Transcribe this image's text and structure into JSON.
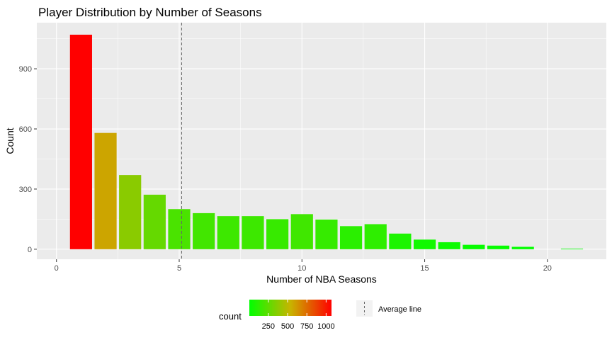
{
  "chart_data": {
    "type": "bar",
    "title": "Player Distribution by Number of Seasons",
    "xlabel": "Number of NBA Seasons",
    "ylabel": "Count",
    "x": [
      1,
      2,
      3,
      4,
      5,
      6,
      7,
      8,
      9,
      10,
      11,
      12,
      13,
      14,
      15,
      16,
      17,
      18,
      19,
      20,
      21
    ],
    "values": [
      1070,
      580,
      370,
      272,
      200,
      180,
      165,
      165,
      150,
      175,
      148,
      115,
      125,
      78,
      48,
      35,
      22,
      18,
      12,
      0,
      3
    ],
    "xlim": [
      -0.8,
      22.4
    ],
    "ylim": [
      -50,
      1130
    ],
    "xticks": [
      0,
      5,
      10,
      15,
      20
    ],
    "yticks": [
      0,
      300,
      600,
      900
    ],
    "average_line": 5.1,
    "grid": true,
    "fill_scale": {
      "name": "count",
      "low_color": "#00FF00",
      "mid_color": "#C8B400",
      "high_color": "#FF0000",
      "breaks": [
        250,
        500,
        750,
        1000
      ]
    },
    "legend": {
      "placement": "bottom",
      "fill_title": "count",
      "line_label": "Average line"
    }
  }
}
